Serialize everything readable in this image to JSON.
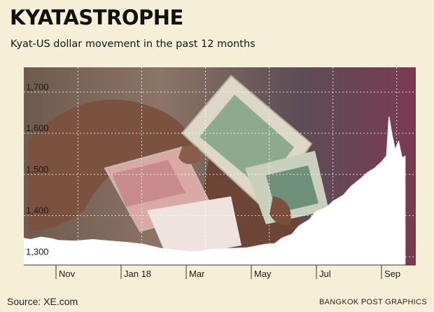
{
  "header": {
    "title": "KYATASTROPHE",
    "subtitle": "Kyat-US dollar movement in the past 12 months"
  },
  "footer": {
    "source": "Source: XE.com",
    "credit": "BANGKOK POST GRAPHICS"
  },
  "chart_data": {
    "type": "area",
    "title": "KYATASTROPHE",
    "subtitle": "Kyat-US dollar movement in the past 12 months",
    "x_ticks": [
      "Nov",
      "Jan 18",
      "Mar",
      "May",
      "Jul",
      "Sep"
    ],
    "y_ticks": [
      1300,
      1400,
      1500,
      1600,
      1700
    ],
    "y_tick_labels": [
      "1,300",
      "1,400",
      "1,500",
      "1,600",
      "1,700"
    ],
    "ylim": [
      1280,
      1760
    ],
    "xlim": [
      0,
      11.4
    ],
    "grid": true,
    "fill_color": "#ffffff",
    "background": "photo of hands holding kyat banknotes",
    "series": [
      {
        "x": [
          0,
          0.2,
          0.5,
          0.8,
          1.0,
          1.5,
          2.0,
          2.5,
          3.0,
          3.5,
          4.0,
          4.5,
          5.0,
          5.5,
          6.0,
          6.5,
          7.0,
          7.3,
          7.5,
          7.8,
          8.0,
          8.3,
          8.5,
          8.8,
          9.0,
          9.3,
          9.5,
          9.8,
          10.0,
          10.2,
          10.4,
          10.55,
          10.62,
          10.7,
          10.8,
          10.9,
          11.0,
          11.1
        ],
        "values": [
          1345,
          1342,
          1348,
          1344,
          1340,
          1338,
          1342,
          1338,
          1335,
          1330,
          1320,
          1315,
          1312,
          1318,
          1320,
          1322,
          1330,
          1332,
          1345,
          1355,
          1375,
          1390,
          1410,
          1420,
          1435,
          1450,
          1470,
          1490,
          1505,
          1515,
          1530,
          1545,
          1640,
          1600,
          1560,
          1580,
          1540,
          1545
        ]
      }
    ]
  }
}
